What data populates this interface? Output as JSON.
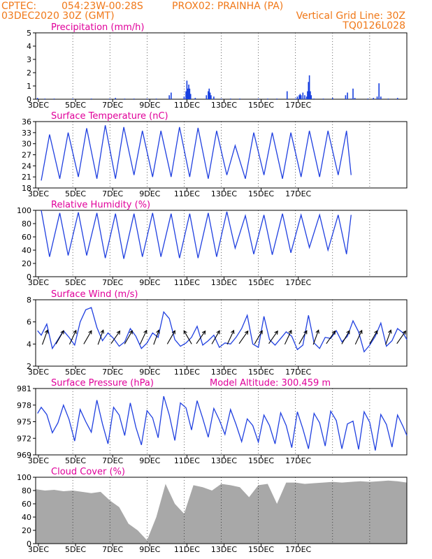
{
  "header": {
    "line1_left": "CPTEC:",
    "line1_coords": "054:23W-00:28S",
    "line1_station": "PROX02: PRAINHA (PA)",
    "line2_date": "03DEC2020 30Z (GMT)",
    "line2_grid": "Vertical Grid Line: 30Z",
    "line3_code": "TQ0126L028"
  },
  "colors": {
    "header_text": "#f07818",
    "title_text": "#e0009a",
    "series_line": "#2040e0",
    "precip_bar": "#1840e0",
    "cloud_fill": "#a8a8a8",
    "wind_arrow": "#000000",
    "grid": "#000000"
  },
  "date_ticks": [
    "3DEC",
    "5DEC",
    "7DEC",
    "9DEC",
    "11DEC",
    "13DEC",
    "15DEC",
    "17DEC"
  ],
  "chart_data": [
    {
      "type": "bar",
      "title": "Precipitation (mm/h)",
      "ylim": [
        0,
        5
      ],
      "yticks": [
        "0",
        "1",
        "2",
        "3",
        "4",
        "5"
      ],
      "x_unit": "days after 03DEC2020 00Z",
      "bars": [
        [
          0.1,
          0.1
        ],
        [
          0.5,
          0.05
        ],
        [
          1.0,
          0.05
        ],
        [
          2.0,
          0.05
        ],
        [
          3.0,
          0.05
        ],
        [
          4.0,
          0.05
        ],
        [
          4.3,
          0.1
        ],
        [
          4.8,
          0.05
        ],
        [
          5.3,
          0.05
        ],
        [
          6.0,
          0.05
        ],
        [
          6.5,
          0.05
        ],
        [
          7.2,
          0.3
        ],
        [
          7.3,
          0.5
        ],
        [
          8.0,
          0.2
        ],
        [
          8.1,
          0.6
        ],
        [
          8.15,
          1.4
        ],
        [
          8.2,
          0.8
        ],
        [
          8.25,
          1.1
        ],
        [
          8.3,
          0.8
        ],
        [
          8.35,
          0.4
        ],
        [
          8.6,
          0.1
        ],
        [
          9.2,
          0.3
        ],
        [
          9.3,
          0.6
        ],
        [
          9.35,
          0.8
        ],
        [
          9.4,
          0.5
        ],
        [
          9.45,
          0.3
        ],
        [
          9.6,
          0.2
        ],
        [
          10.0,
          0.05
        ],
        [
          10.5,
          0.05
        ],
        [
          11.0,
          0.05
        ],
        [
          12.0,
          0.05
        ],
        [
          12.5,
          0.05
        ],
        [
          13.0,
          0.05
        ],
        [
          13.55,
          0.6
        ],
        [
          14.0,
          0.05
        ],
        [
          14.1,
          0.2
        ],
        [
          14.2,
          0.3
        ],
        [
          14.25,
          0.4
        ],
        [
          14.3,
          0.3
        ],
        [
          14.4,
          0.5
        ],
        [
          14.5,
          0.3
        ],
        [
          14.6,
          0.2
        ],
        [
          14.65,
          0.6
        ],
        [
          14.7,
          1.3
        ],
        [
          14.75,
          1.8
        ],
        [
          14.8,
          0.6
        ],
        [
          14.85,
          0.3
        ],
        [
          15.0,
          0.05
        ],
        [
          15.5,
          0.05
        ],
        [
          16.0,
          0.1
        ],
        [
          16.7,
          0.3
        ],
        [
          16.8,
          0.5
        ],
        [
          17.0,
          0.05
        ],
        [
          17.1,
          0.8
        ],
        [
          17.2,
          0.1
        ],
        [
          17.9,
          0.05
        ],
        [
          18.2,
          0.1
        ],
        [
          18.4,
          0.2
        ],
        [
          18.5,
          1.2
        ],
        [
          18.6,
          0.2
        ],
        [
          19.0,
          0.05
        ],
        [
          19.5,
          0.1
        ]
      ]
    },
    {
      "type": "line",
      "title": "Surface Temperature (nC)",
      "ylim": [
        18,
        36
      ],
      "yticks": [
        "18",
        "21",
        "24",
        "27",
        "30",
        "33",
        "36"
      ],
      "x_unit": "days after 03DEC2020 00Z",
      "daily_max": [
        32.5,
        33.0,
        34.2,
        35.0,
        34.5,
        33.5,
        33.5,
        34.5,
        34.3,
        33.5,
        29.5,
        33.0,
        33.0,
        33.0,
        33.5,
        33.5,
        33.5
      ],
      "daily_min": [
        20.0,
        20.5,
        21.0,
        20.5,
        20.5,
        21.5,
        21.0,
        21.0,
        21.0,
        20.5,
        21.5,
        20.5,
        21.5,
        20.5,
        21.0,
        21.0,
        21.5
      ]
    },
    {
      "type": "line",
      "title": "Relative Humidity (%)",
      "ylim": [
        0,
        100
      ],
      "yticks": [
        "0",
        "20",
        "40",
        "60",
        "80",
        "100"
      ],
      "x_unit": "days after 03DEC2020 00Z",
      "daily_max": [
        100,
        96,
        97,
        96,
        95,
        95,
        96,
        95,
        95,
        96,
        98,
        92,
        93,
        95,
        93,
        93,
        93
      ],
      "daily_min": [
        30,
        32,
        32,
        28,
        27,
        30,
        30,
        28,
        28,
        30,
        43,
        34,
        33,
        36,
        44,
        40,
        34
      ]
    },
    {
      "type": "line",
      "title": "Surface Wind (m/s)",
      "ylim": [
        2,
        8
      ],
      "yticks": [
        "2",
        "4",
        "6",
        "8"
      ],
      "x_unit": "days after 03DEC2020 00Z",
      "x": [
        0.1,
        0.3,
        0.6,
        0.9,
        1.2,
        1.5,
        1.8,
        2.1,
        2.4,
        2.7,
        3.0,
        3.3,
        3.6,
        3.9,
        4.2,
        4.5,
        4.8,
        5.1,
        5.4,
        5.7,
        6.0,
        6.3,
        6.6,
        6.9,
        7.2,
        7.5,
        7.8,
        8.1,
        8.4,
        8.7,
        9.0,
        9.3,
        9.6,
        9.9,
        10.2,
        10.5,
        10.8,
        11.1,
        11.4,
        11.7,
        12.0,
        12.3,
        12.6,
        12.9,
        13.2,
        13.5,
        13.8,
        14.1,
        14.4,
        14.7,
        15.0,
        15.3,
        15.6,
        15.9,
        16.2,
        16.5,
        16.8,
        17.1,
        17.4,
        17.7,
        18.0,
        18.3,
        18.6,
        18.9,
        19.2,
        19.5,
        19.8,
        20.0
      ],
      "y": [
        5.2,
        4.8,
        5.8,
        3.6,
        4.4,
        5.2,
        4.6,
        3.9,
        6.0,
        7.1,
        7.3,
        5.5,
        4.3,
        5.0,
        4.5,
        3.8,
        4.2,
        5.4,
        4.7,
        3.6,
        4.1,
        5.0,
        4.6,
        6.9,
        6.3,
        4.4,
        3.8,
        4.1,
        4.6,
        5.6,
        3.9,
        4.3,
        4.8,
        3.7,
        4.1,
        4.0,
        4.6,
        5.4,
        6.6,
        4.0,
        3.7,
        6.5,
        4.4,
        3.9,
        4.5,
        5.1,
        4.7,
        3.5,
        3.9,
        6.6,
        4.1,
        3.6,
        4.6,
        4.5,
        5.2,
        4.2,
        4.7,
        6.1,
        5.1,
        3.3,
        3.9,
        4.7,
        5.9,
        3.8,
        4.3,
        5.4,
        5.0,
        4.4
      ],
      "wind_arrows": [
        {
          "x": 0.5,
          "y": 4.6,
          "dir_deg": 200
        },
        {
          "x": 1.3,
          "y": 4.6,
          "dir_deg": 210
        },
        {
          "x": 2.0,
          "y": 4.6,
          "dir_deg": 205
        },
        {
          "x": 2.8,
          "y": 4.6,
          "dir_deg": 210
        },
        {
          "x": 3.5,
          "y": 4.6,
          "dir_deg": 200
        },
        {
          "x": 4.3,
          "y": 4.6,
          "dir_deg": 215
        },
        {
          "x": 5.0,
          "y": 4.6,
          "dir_deg": 210
        },
        {
          "x": 5.8,
          "y": 4.6,
          "dir_deg": 205
        },
        {
          "x": 6.5,
          "y": 4.6,
          "dir_deg": 200
        },
        {
          "x": 7.3,
          "y": 4.6,
          "dir_deg": 210
        },
        {
          "x": 8.2,
          "y": 4.6,
          "dir_deg": 150
        },
        {
          "x": 8.9,
          "y": 4.6,
          "dir_deg": 215
        },
        {
          "x": 9.7,
          "y": 4.6,
          "dir_deg": 210
        },
        {
          "x": 10.5,
          "y": 4.6,
          "dir_deg": 205
        },
        {
          "x": 11.2,
          "y": 4.6,
          "dir_deg": 215
        },
        {
          "x": 12.0,
          "y": 4.6,
          "dir_deg": 210
        },
        {
          "x": 12.8,
          "y": 4.6,
          "dir_deg": 215
        },
        {
          "x": 13.6,
          "y": 4.6,
          "dir_deg": 205
        },
        {
          "x": 14.4,
          "y": 4.6,
          "dir_deg": 210
        },
        {
          "x": 15.1,
          "y": 4.6,
          "dir_deg": 200
        },
        {
          "x": 15.9,
          "y": 4.6,
          "dir_deg": 215
        },
        {
          "x": 16.7,
          "y": 4.6,
          "dir_deg": 210
        },
        {
          "x": 17.4,
          "y": 4.6,
          "dir_deg": 205
        },
        {
          "x": 18.2,
          "y": 4.6,
          "dir_deg": 210
        },
        {
          "x": 19.0,
          "y": 4.6,
          "dir_deg": 200
        },
        {
          "x": 19.7,
          "y": 4.6,
          "dir_deg": 215
        }
      ]
    },
    {
      "type": "line",
      "title": "Surface Pressure (hPa)",
      "annotation": "Model Altitude: 300.459 m",
      "ylim": [
        969,
        981
      ],
      "yticks": [
        "969",
        "972",
        "975",
        "978",
        "981"
      ],
      "x_unit": "days after 03DEC2020 00Z",
      "x": [
        0.1,
        0.3,
        0.6,
        0.9,
        1.2,
        1.5,
        1.8,
        2.1,
        2.4,
        2.7,
        3.0,
        3.3,
        3.6,
        3.9,
        4.2,
        4.5,
        4.8,
        5.1,
        5.4,
        5.7,
        6.0,
        6.3,
        6.6,
        6.9,
        7.2,
        7.5,
        7.8,
        8.1,
        8.4,
        8.7,
        9.0,
        9.3,
        9.6,
        9.9,
        10.2,
        10.5,
        10.8,
        11.1,
        11.4,
        11.7,
        12.0,
        12.3,
        12.6,
        12.9,
        13.2,
        13.5,
        13.8,
        14.1,
        14.4,
        14.7,
        15.0,
        15.3,
        15.6,
        15.9,
        16.2,
        16.5,
        16.8,
        17.1,
        17.4,
        17.7,
        18.0,
        18.3,
        18.6,
        18.9,
        19.2,
        19.5,
        19.8,
        20.0
      ],
      "y": [
        976.5,
        977.6,
        976.3,
        973.0,
        974.8,
        978.0,
        975.4,
        971.5,
        977.2,
        975.0,
        973.1,
        978.9,
        974.6,
        971.0,
        977.6,
        976.2,
        972.5,
        978.4,
        974.0,
        970.8,
        977.0,
        975.7,
        972.1,
        979.6,
        976.2,
        971.6,
        978.4,
        977.5,
        973.5,
        978.8,
        975.6,
        972.2,
        977.4,
        975.3,
        972.7,
        977.2,
        974.5,
        971.4,
        975.5,
        974.3,
        971.3,
        976.2,
        974.3,
        971.0,
        976.6,
        974.3,
        970.3,
        976.8,
        973.7,
        970.1,
        976.5,
        974.8,
        970.6,
        976.9,
        975.2,
        970.1,
        974.6,
        975.1,
        970.0,
        976.8,
        974.9,
        969.8,
        976.3,
        974.5,
        970.4,
        976.2,
        974.1,
        972.5
      ]
    },
    {
      "type": "area",
      "title": "Cloud Cover (%)",
      "ylim": [
        0,
        100
      ],
      "yticks": [
        "0",
        "20",
        "40",
        "60",
        "80",
        "100"
      ],
      "x_unit": "days after 03DEC2020 00Z",
      "x": [
        0.0,
        0.5,
        1.0,
        1.5,
        2.0,
        2.5,
        3.0,
        3.5,
        4.0,
        4.5,
        5.0,
        5.5,
        6.0,
        6.5,
        7.0,
        7.5,
        8.0,
        8.5,
        9.0,
        9.5,
        10.0,
        10.5,
        11.0,
        11.5,
        12.0,
        12.5,
        13.0,
        13.5,
        14.0,
        14.5,
        15.0,
        15.5,
        16.0,
        16.5,
        17.0,
        17.5,
        18.0,
        18.5,
        19.0,
        19.5,
        20.0
      ],
      "y": [
        82,
        80,
        81,
        79,
        80,
        78,
        76,
        78,
        65,
        55,
        30,
        20,
        5,
        40,
        90,
        60,
        45,
        88,
        85,
        80,
        90,
        88,
        85,
        70,
        88,
        90,
        60,
        92,
        92,
        90,
        91,
        92,
        93,
        92,
        93,
        94,
        93,
        94,
        95,
        94,
        92
      ]
    }
  ]
}
